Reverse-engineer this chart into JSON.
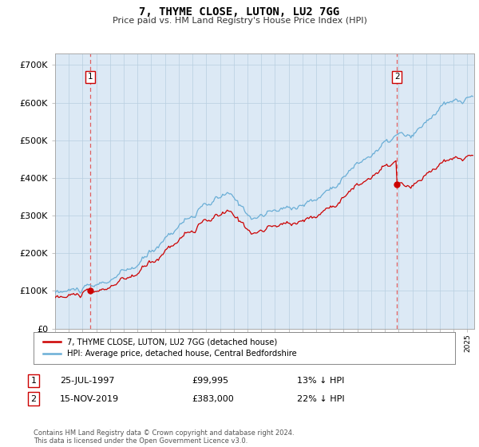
{
  "title": "7, THYME CLOSE, LUTON, LU2 7GG",
  "subtitle": "Price paid vs. HM Land Registry's House Price Index (HPI)",
  "hpi_label": "HPI: Average price, detached house, Central Bedfordshire",
  "property_label": "7, THYME CLOSE, LUTON, LU2 7GG (detached house)",
  "sale1_date": "25-JUL-1997",
  "sale1_price": 99995,
  "sale1_pct": "13% ↓ HPI",
  "sale2_date": "15-NOV-2019",
  "sale2_price": 383000,
  "sale2_pct": "22% ↓ HPI",
  "sale1_year": 1997.56,
  "sale2_year": 2019.88,
  "ylabel_ticks": [
    0,
    100000,
    200000,
    300000,
    400000,
    500000,
    600000,
    700000
  ],
  "ylabel_labels": [
    "£0",
    "£100K",
    "£200K",
    "£300K",
    "£400K",
    "£500K",
    "£600K",
    "£700K"
  ],
  "xlim_start": 1995.0,
  "xlim_end": 2025.5,
  "ylim_min": 0,
  "ylim_max": 730000,
  "background_color": "#dce9f5",
  "plot_bg_color": "#ffffff",
  "hpi_color": "#6aaed6",
  "property_color": "#cc0000",
  "grid_color": "#b8cfe0",
  "dashed_color": "#e06060",
  "footer": "Contains HM Land Registry data © Crown copyright and database right 2024.\nThis data is licensed under the Open Government Licence v3.0."
}
